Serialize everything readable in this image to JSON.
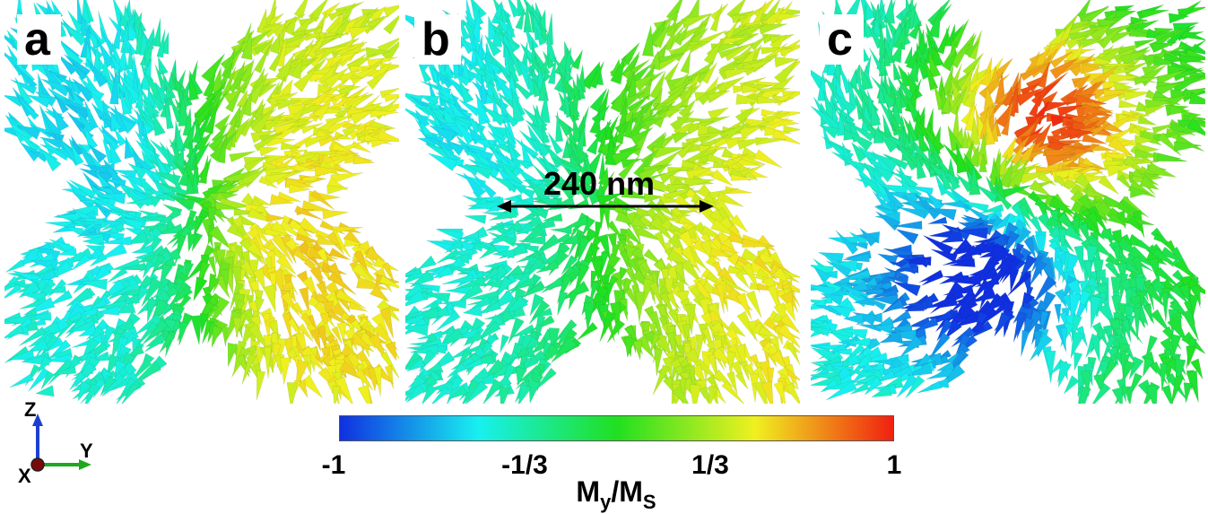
{
  "panels": [
    {
      "label": "a",
      "mode": "a"
    },
    {
      "label": "b",
      "mode": "b"
    },
    {
      "label": "c",
      "mode": "c"
    }
  ],
  "scale_bar": {
    "text": "240 nm"
  },
  "colorbar": {
    "title_main": "M",
    "title_sub1": "y",
    "title_mid": "/M",
    "title_sub2": "S",
    "ticks": [
      "-1",
      "-1/3",
      "1/3",
      "1"
    ],
    "colors": [
      "#1030e0",
      "#18f0f0",
      "#20e020",
      "#f0f020",
      "#f02010"
    ]
  },
  "axes": {
    "z": "Z",
    "y": "Y",
    "x": "X",
    "z_color": "#1d3fd0",
    "y_color": "#1fa81f",
    "x_color": "#7a0a0a"
  }
}
